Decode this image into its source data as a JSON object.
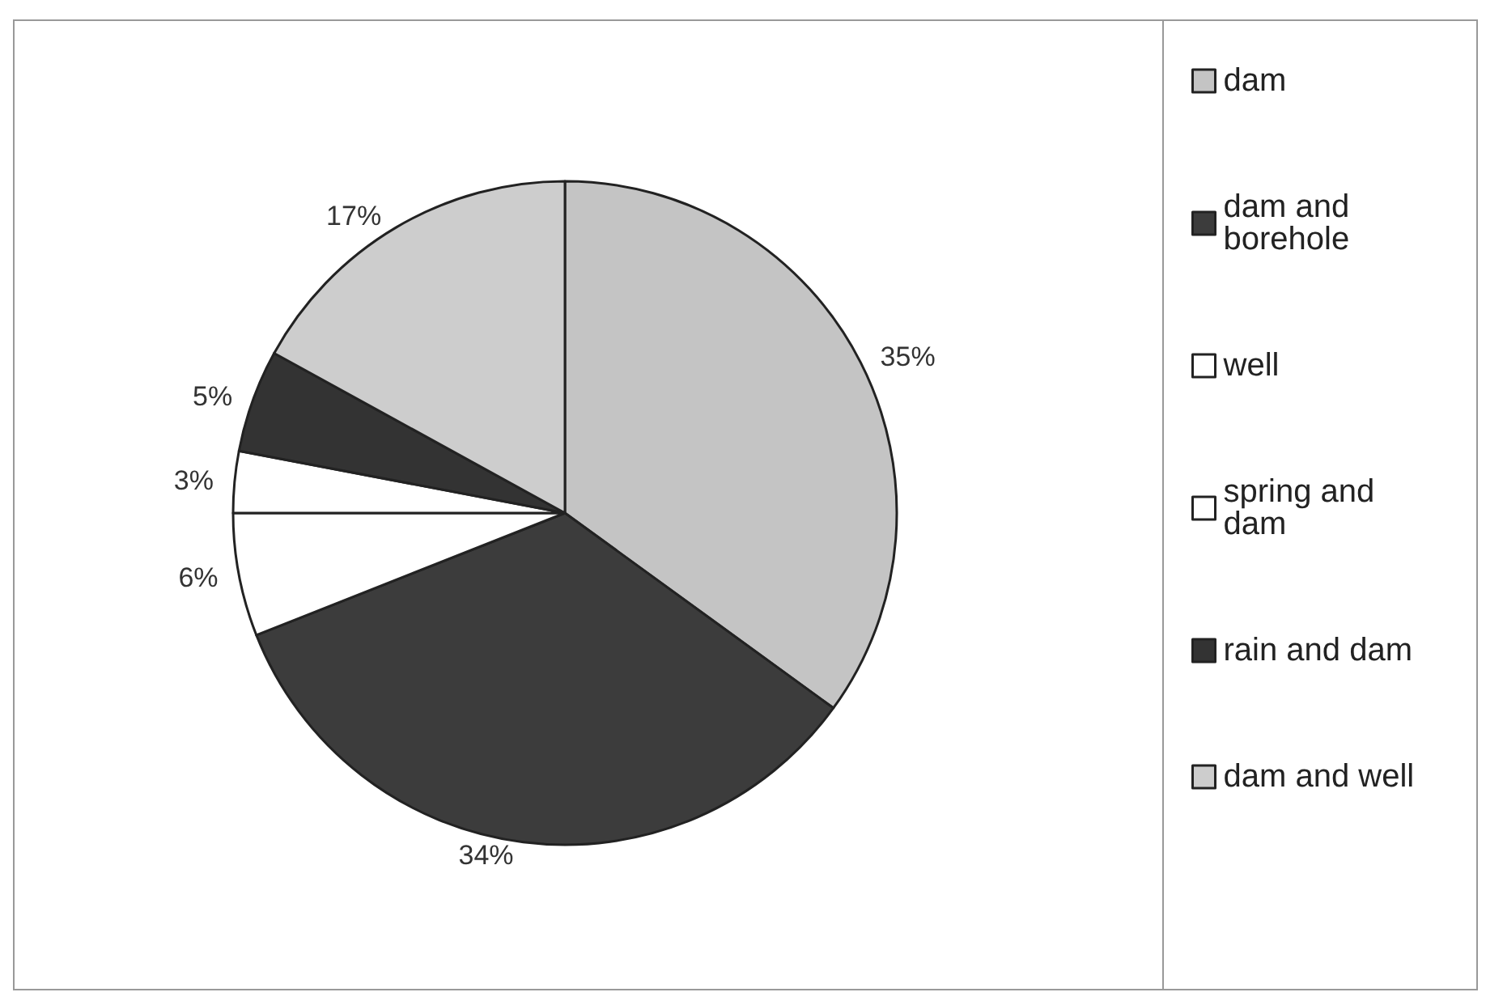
{
  "chart_data": {
    "type": "pie",
    "categories": [
      "dam",
      "dam and borehole",
      "well",
      "spring and dam",
      "rain and dam",
      "dam and well"
    ],
    "values": [
      35,
      34,
      6,
      3,
      5,
      17
    ],
    "value_labels": [
      "35%",
      "34%",
      "6%",
      "3%",
      "5%",
      "17%"
    ],
    "colors": [
      "#c4c4c4",
      "#3c3c3c",
      "#ffffff",
      "#ffffff",
      "#333333",
      "#cdcdcd"
    ],
    "legend": "right"
  }
}
